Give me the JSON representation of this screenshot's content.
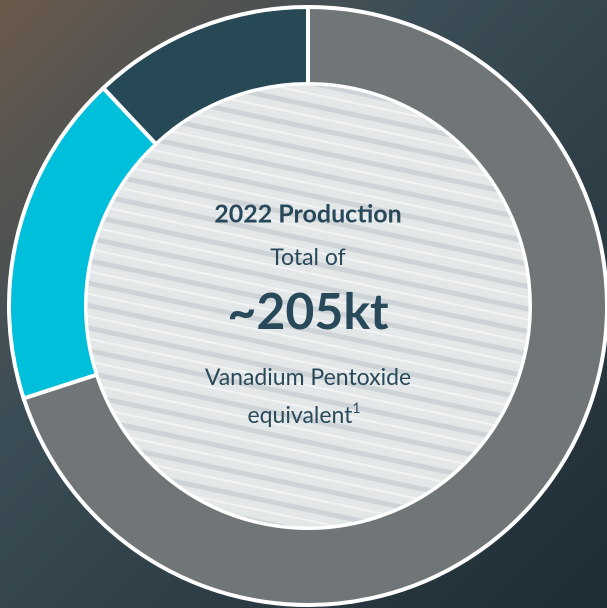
{
  "chart_data": {
    "type": "donut",
    "title": "2022 Production",
    "subtitle": "Total of",
    "headline": "~205kt",
    "description_line1": "Vanadium Pentoxide",
    "description_line2": "equivalent",
    "footnote_marker": "1",
    "categories": [
      null,
      null,
      null
    ],
    "values": [
      70,
      18,
      12
    ],
    "colors": [
      "#707577",
      "#00bfdb",
      "#264955"
    ]
  }
}
